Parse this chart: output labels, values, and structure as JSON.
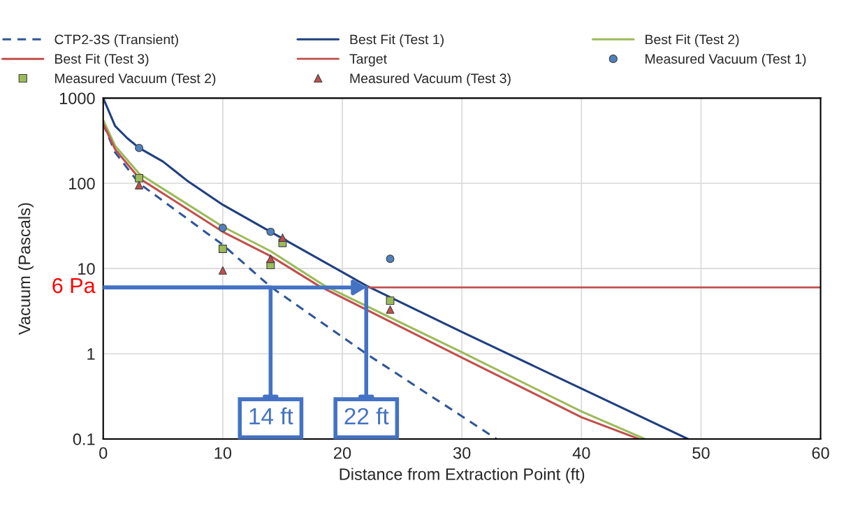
{
  "chart_data": {
    "type": "line",
    "xlabel": "Distance from Extraction Point (ft)",
    "ylabel": "Vacuum (Pascals)",
    "log": "y",
    "xlim": [
      0,
      60
    ],
    "xticks": [
      0,
      10,
      20,
      30,
      40,
      50,
      60
    ],
    "ylim": [
      0.1,
      1000
    ],
    "yticks": [
      0.1,
      1,
      10,
      100,
      1000
    ],
    "grid": true,
    "legend": "top",
    "series": [
      {
        "name": "CTP2-3S (Transient)",
        "type": "line",
        "line_style": "dashed",
        "marker": "none",
        "color": "#2f5597",
        "x": [
          0,
          1,
          3,
          10,
          14,
          22,
          32.9
        ],
        "values": [
          500,
          230,
          100,
          19,
          6.1,
          1,
          0.1
        ]
      },
      {
        "name": "Best Fit (Test 1)",
        "type": "line",
        "line_style": "solid",
        "marker": "none",
        "color": "#1f3f7f",
        "x": [
          0,
          1,
          2,
          3,
          5,
          7,
          10,
          14,
          22,
          30,
          40,
          48.9
        ],
        "values": [
          1000,
          470,
          340,
          260,
          180,
          108,
          56,
          27,
          6.3,
          1.8,
          0.39,
          0.1
        ]
      },
      {
        "name": "Best Fit (Test 2)",
        "type": "line",
        "line_style": "solid",
        "marker": "none",
        "color": "#9bbb59",
        "x": [
          0,
          1,
          3,
          10,
          14,
          18.5,
          30,
          40,
          45.3
        ],
        "values": [
          550,
          275,
          130,
          31,
          16,
          6.3,
          1.04,
          0.21,
          0.1
        ]
      },
      {
        "name": "Best Fit (Test 3)",
        "type": "line",
        "line_style": "solid",
        "marker": "none",
        "color": "#c0504d",
        "x": [
          0,
          1,
          3,
          10,
          14,
          18,
          30,
          40,
          44.8
        ],
        "values": [
          500,
          250,
          115,
          27,
          14,
          6.3,
          0.9,
          0.18,
          0.1
        ]
      },
      {
        "name": "Measured Vacuum (Test 1)",
        "type": "scatter",
        "marker": "circle",
        "color": "#4f81bd",
        "x": [
          3,
          10,
          14,
          24
        ],
        "values": [
          260,
          30,
          27,
          13
        ]
      },
      {
        "name": "Measured Vacuum (Test 2)",
        "type": "scatter",
        "marker": "square",
        "color": "#9bbb59",
        "x": [
          3,
          10,
          14,
          15,
          24
        ],
        "values": [
          115,
          17,
          11,
          20,
          4.2
        ]
      },
      {
        "name": "Measured Vacuum (Test 3)",
        "type": "scatter",
        "marker": "triangle",
        "color": "#c0504d",
        "x": [
          3,
          10,
          14,
          15,
          24
        ],
        "values": [
          95,
          9.5,
          13,
          23,
          3.3
        ]
      }
    ],
    "ref_lines": [
      {
        "axis": "y",
        "value": 6,
        "label": "Target",
        "color": "#c0504d",
        "line_style": "solid"
      }
    ],
    "annotations": [
      {
        "text": "6 Pa",
        "x": 0,
        "y": 6
      },
      {
        "text": "14 ft",
        "x": 14,
        "y": 6
      },
      {
        "text": "22 ft",
        "x": 22,
        "y": 6
      }
    ]
  }
}
